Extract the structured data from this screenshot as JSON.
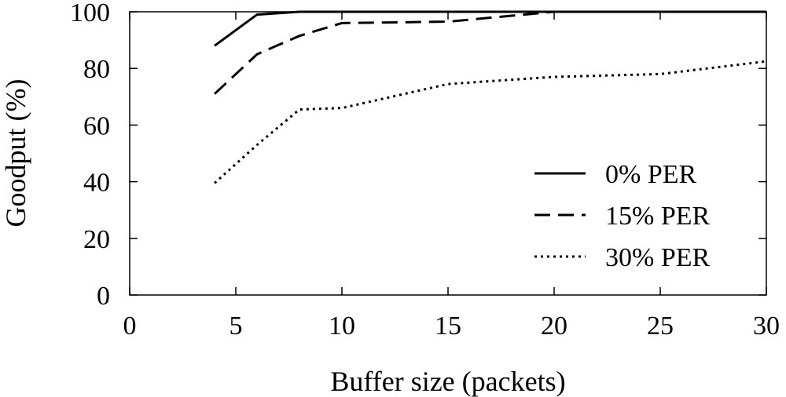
{
  "chart_data": {
    "type": "line",
    "title": "",
    "xlabel": "Buffer size (packets)",
    "ylabel": "Goodput (%)",
    "xlim": [
      0,
      30
    ],
    "ylim": [
      0,
      100
    ],
    "xticks": [
      "0",
      "5",
      "10",
      "15",
      "20",
      "25",
      "30"
    ],
    "yticks": [
      "0",
      "20",
      "40",
      "60",
      "80",
      "100"
    ],
    "grid": false,
    "legend_position": "bottom-right",
    "series": [
      {
        "name": "0% PER",
        "style": "solid",
        "color": "#000000",
        "x": [
          4,
          6,
          8,
          10,
          15,
          20,
          25,
          30
        ],
        "y": [
          88,
          99,
          100,
          100,
          100,
          100,
          100,
          100
        ]
      },
      {
        "name": "15% PER",
        "style": "dashed",
        "color": "#000000",
        "x": [
          4,
          6,
          8,
          10,
          15,
          20,
          25,
          30
        ],
        "y": [
          71,
          85,
          91.5,
          96,
          96.5,
          100,
          100,
          100
        ]
      },
      {
        "name": "30% PER",
        "style": "dotted",
        "color": "#000000",
        "x": [
          4,
          6,
          8,
          10,
          15,
          20,
          25,
          30
        ],
        "y": [
          39.5,
          53,
          65.5,
          66,
          74.5,
          77,
          78,
          82.5
        ]
      }
    ]
  }
}
